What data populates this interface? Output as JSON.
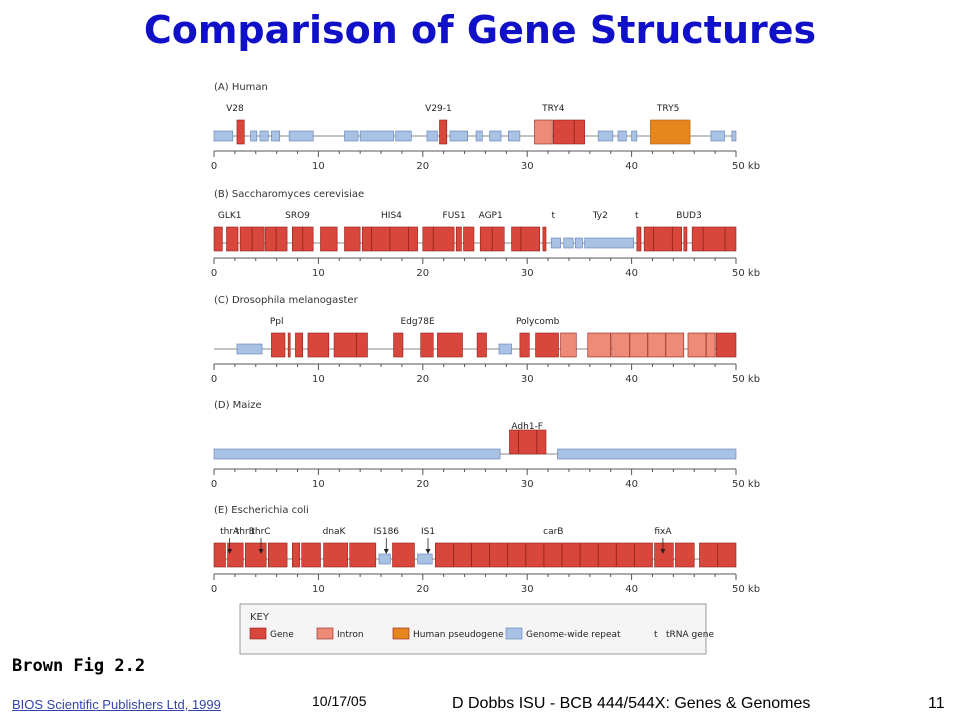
{
  "slide": {
    "title": "Comparison of Gene Structures",
    "caption": "Brown Fig 2.2",
    "credit": "BIOS Scientific Publishers Ltd, 1999",
    "date": "10/17/05",
    "course": "D Dobbs ISU - BCB 444/544X: Genes & Genomes",
    "page": "11"
  },
  "colors": {
    "title": "#1010c8",
    "gene": "#d9473c",
    "intron": "#ee8a78",
    "pseudogene": "#e8861e",
    "repeat": "#a9c1e3",
    "axis": "#555555"
  },
  "axis": {
    "ticks": [
      "0",
      "10",
      "20",
      "30",
      "40",
      "50 kb"
    ],
    "max_kb": 50
  },
  "panels": [
    {
      "id": "A",
      "label": "(A) Human",
      "genes": [
        {
          "text": "V28",
          "kb": 2.0
        },
        {
          "text": "V29-1",
          "kb": 21.5
        },
        {
          "text": "TRY4",
          "kb": 32.5
        },
        {
          "text": "TRY5",
          "kb": 43.5
        }
      ],
      "features": [
        [
          0,
          1.8,
          "repeat"
        ],
        [
          2.2,
          2.9,
          "gene"
        ],
        [
          3.5,
          4.1,
          "repeat"
        ],
        [
          4.4,
          5.2,
          "repeat"
        ],
        [
          5.5,
          6.3,
          "repeat"
        ],
        [
          7.2,
          9.5,
          "repeat"
        ],
        [
          12.5,
          13.8,
          "repeat"
        ],
        [
          14,
          17.2,
          "repeat"
        ],
        [
          17.4,
          18.9,
          "repeat"
        ],
        [
          20.4,
          21.4,
          "repeat"
        ],
        [
          21.6,
          22.3,
          "gene"
        ],
        [
          22.6,
          24.3,
          "repeat"
        ],
        [
          25.1,
          25.7,
          "repeat"
        ],
        [
          26.4,
          27.5,
          "repeat"
        ],
        [
          28.2,
          29.3,
          "repeat"
        ],
        [
          30.7,
          32.4,
          "intron"
        ],
        [
          32.5,
          35.5,
          "gene"
        ],
        [
          36.8,
          38.2,
          "repeat"
        ],
        [
          38.7,
          39.5,
          "repeat"
        ],
        [
          40,
          40.5,
          "repeat"
        ],
        [
          41.8,
          45.6,
          "pseudogene"
        ],
        [
          47.6,
          48.9,
          "repeat"
        ],
        [
          49.6,
          50,
          "repeat"
        ]
      ]
    },
    {
      "id": "B",
      "label": "(B) Saccharomyces cerevisiae",
      "genes": [
        {
          "text": "GLK1",
          "kb": 1.5
        },
        {
          "text": "SRO9",
          "kb": 8.0
        },
        {
          "text": "HIS4",
          "kb": 17.0
        },
        {
          "text": "FUS1",
          "kb": 23.0
        },
        {
          "text": "AGP1",
          "kb": 26.5
        },
        {
          "text": "t",
          "kb": 32.5
        },
        {
          "text": "Ty2",
          "kb": 37.0
        },
        {
          "text": "t",
          "kb": 40.5
        },
        {
          "text": "BUD3",
          "kb": 45.5
        }
      ],
      "features": [
        [
          0,
          0.8,
          "gene"
        ],
        [
          1.2,
          2.3,
          "gene"
        ],
        [
          2.5,
          4.8,
          "gene"
        ],
        [
          4.9,
          7,
          "gene"
        ],
        [
          7.5,
          9.5,
          "gene"
        ],
        [
          10.2,
          11.8,
          "gene"
        ],
        [
          12.5,
          14,
          "gene"
        ],
        [
          14.2,
          19.5,
          "gene"
        ],
        [
          20,
          23,
          "gene"
        ],
        [
          23.2,
          23.7,
          "gene"
        ],
        [
          23.9,
          24.9,
          "gene"
        ],
        [
          25.5,
          27.8,
          "gene"
        ],
        [
          28.5,
          31.2,
          "gene"
        ],
        [
          31.5,
          31.8,
          "gene"
        ],
        [
          32.3,
          33.2,
          "repeat"
        ],
        [
          33.5,
          34.4,
          "repeat"
        ],
        [
          34.6,
          35.3,
          "repeat"
        ],
        [
          35.5,
          40.2,
          "repeat"
        ],
        [
          40.5,
          40.9,
          "gene"
        ],
        [
          41.2,
          44.8,
          "gene"
        ],
        [
          45,
          45.3,
          "gene"
        ],
        [
          45.8,
          50,
          "gene"
        ]
      ]
    },
    {
      "id": "C",
      "label": "(C) Drosophila melanogaster",
      "genes": [
        {
          "text": "Ppl",
          "kb": 6.0
        },
        {
          "text": "Edg78E",
          "kb": 19.5
        },
        {
          "text": "Polycomb",
          "kb": 31.0
        }
      ],
      "features": [
        [
          2.2,
          4.6,
          "repeat"
        ],
        [
          5.5,
          6.8,
          "gene"
        ],
        [
          7.1,
          7.3,
          "gene"
        ],
        [
          7.8,
          8.5,
          "gene"
        ],
        [
          9,
          11,
          "gene"
        ],
        [
          11.5,
          14.7,
          "gene"
        ],
        [
          17.2,
          18.1,
          "gene"
        ],
        [
          19.8,
          21,
          "gene"
        ],
        [
          21.4,
          23.8,
          "gene"
        ],
        [
          25.2,
          26.1,
          "gene"
        ],
        [
          27.3,
          28.5,
          "repeat"
        ],
        [
          29.3,
          30.2,
          "gene"
        ],
        [
          30.8,
          33,
          "gene"
        ],
        [
          33.2,
          34.7,
          "intron"
        ],
        [
          35.8,
          38,
          "intron"
        ],
        [
          38.1,
          45,
          "intron"
        ],
        [
          45.4,
          48,
          "intron"
        ],
        [
          48.1,
          50,
          "gene"
        ]
      ]
    },
    {
      "id": "D",
      "label": "(D) Maize",
      "genes": [
        {
          "text": "Adh1-F",
          "kb": 30.0
        }
      ],
      "features": [
        [
          0,
          27.4,
          "repeat"
        ],
        [
          28.3,
          31.8,
          "gene"
        ],
        [
          32.9,
          50,
          "repeat"
        ]
      ]
    },
    {
      "id": "E",
      "label": "(E) Escherichia coli",
      "genes": [
        {
          "text": "thrA",
          "kb": 1.5
        },
        {
          "text": "thrB",
          "kb": 3.0
        },
        {
          "text": "thrC",
          "kb": 4.5
        },
        {
          "text": "dnaK",
          "kb": 11.5
        },
        {
          "text": "IS186",
          "kb": 16.5
        },
        {
          "text": "IS1",
          "kb": 20.5
        },
        {
          "text": "carB",
          "kb": 32.5
        },
        {
          "text": "fixA",
          "kb": 43.0
        }
      ],
      "features": [
        [
          0,
          1.1,
          "gene"
        ],
        [
          1.3,
          2.8,
          "gene"
        ],
        [
          3,
          5,
          "gene"
        ],
        [
          5.2,
          7,
          "gene"
        ],
        [
          7.5,
          8.2,
          "gene"
        ],
        [
          8.4,
          10.2,
          "gene"
        ],
        [
          10.5,
          12.8,
          "gene"
        ],
        [
          13,
          15.5,
          "gene"
        ],
        [
          15.8,
          16.9,
          "repeat"
        ],
        [
          17.1,
          19.2,
          "gene"
        ],
        [
          19.5,
          20.9,
          "repeat"
        ],
        [
          21.2,
          42,
          "gene"
        ],
        [
          42.2,
          44,
          "gene"
        ],
        [
          44.2,
          46,
          "gene"
        ],
        [
          46.5,
          50,
          "gene"
        ]
      ]
    }
  ],
  "key": {
    "title": "KEY",
    "items": [
      {
        "label": "Gene",
        "type": "gene"
      },
      {
        "label": "Intron",
        "type": "intron"
      },
      {
        "label": "Human pseudogene",
        "type": "pseudogene"
      },
      {
        "label": "Genome-wide repeat",
        "type": "repeat"
      },
      {
        "label": "tRNA gene",
        "type": "t"
      }
    ]
  }
}
